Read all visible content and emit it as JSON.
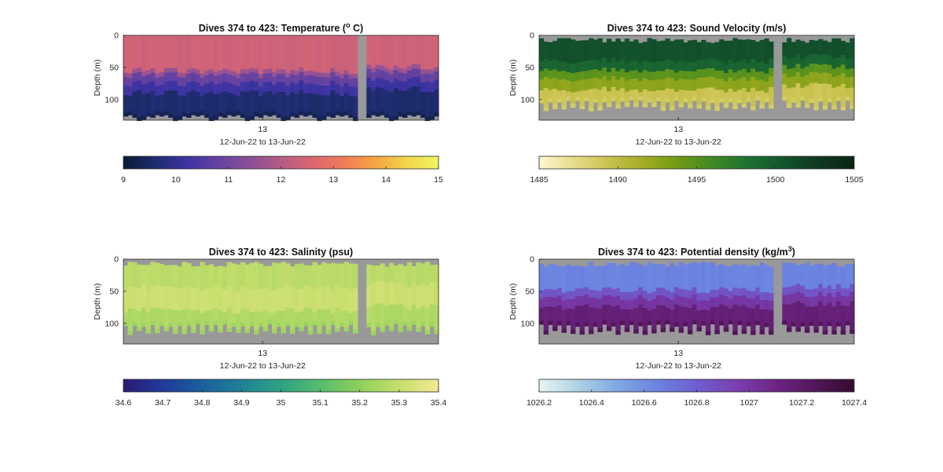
{
  "chart_data": [
    {
      "type": "heatmap",
      "title": "Dives 374 to 423: Temperature",
      "title_unit": {
        "pre": "(",
        "sup": "o",
        "post": " C)"
      },
      "ylabel": "Depth (m)",
      "xlabel": "12-Jun-22 to 13-Jun-22",
      "x_tick_labels": [
        "13"
      ],
      "y_ticks": [
        0,
        50,
        100
      ],
      "ylim": [
        0,
        132
      ],
      "y_reversed": true,
      "background_color": "#999999",
      "colorbar": {
        "min": 9,
        "max": 15,
        "ticks": [
          9,
          10,
          11,
          12,
          13,
          14,
          15
        ],
        "tick_labels": [
          "9",
          "10",
          "11",
          "12",
          "13",
          "14",
          "15"
        ],
        "colormap": [
          "#0b1a33",
          "#1e2c6e",
          "#3d33a3",
          "#6542a1",
          "#8a4f97",
          "#b45a86",
          "#db6772",
          "#f07c58",
          "#f6a542",
          "#f3d64a",
          "#eef760"
        ]
      },
      "profile": {
        "n_columns": 70,
        "gap_columns": [
          52,
          53
        ],
        "top_depth": [
          0,
          0
        ],
        "bottom_depth": [
          126,
          124,
          128,
          133,
          131,
          126,
          128,
          124
        ],
        "layers": [
          {
            "from": 0,
            "to": 55,
            "value": 12.4
          },
          {
            "from": 55,
            "to": 62,
            "value": 11.6
          },
          {
            "from": 62,
            "to": 75,
            "value": 10.8
          },
          {
            "from": 75,
            "to": 90,
            "value": 10.2
          },
          {
            "from": 90,
            "to": 132,
            "value": 9.6
          }
        ],
        "bottom_value": 9.3
      }
    },
    {
      "type": "heatmap",
      "title": "Dives 374 to 423: Sound Velocity (m/s)",
      "ylabel": "Depth (m)",
      "xlabel": "12-Jun-22 to 13-Jun-22",
      "x_tick_labels": [
        "13"
      ],
      "y_ticks": [
        0,
        50,
        100
      ],
      "ylim": [
        0,
        132
      ],
      "y_reversed": true,
      "background_color": "#999999",
      "colorbar": {
        "min": 1485,
        "max": 1505,
        "ticks": [
          1485,
          1490,
          1495,
          1500,
          1505
        ],
        "tick_labels": [
          "1485",
          "1490",
          "1495",
          "1500",
          "1505"
        ],
        "colormap": [
          "#fdf8d1",
          "#e7db8a",
          "#c9c24e",
          "#a3ac22",
          "#6f9a16",
          "#3d8825",
          "#1d7034",
          "#13532c",
          "#0e3820",
          "#0b2416"
        ]
      },
      "profile": {
        "n_columns": 70,
        "gap_columns": [
          52,
          53
        ],
        "top_depth": [
          4,
          12
        ],
        "bottom_depth": [
          95,
          118
        ],
        "layers": [
          {
            "from": 0,
            "to": 40,
            "value": 1500.8
          },
          {
            "from": 40,
            "to": 55,
            "value": 1499.2
          },
          {
            "from": 55,
            "to": 68,
            "value": 1494.8
          },
          {
            "from": 68,
            "to": 85,
            "value": 1492.6
          },
          {
            "from": 85,
            "to": 132,
            "value": 1489.3
          }
        ],
        "bottom_value": 1488.6
      }
    },
    {
      "type": "heatmap",
      "title": "Dives 374 to 423: Salinity (psu)",
      "ylabel": "Depth (m)",
      "xlabel": "12-Jun-22 to 13-Jun-22",
      "x_tick_labels": [
        "13"
      ],
      "y_ticks": [
        0,
        50,
        100
      ],
      "ylim": [
        0,
        132
      ],
      "y_reversed": true,
      "background_color": "#999999",
      "colorbar": {
        "min": 34.6,
        "max": 35.4,
        "ticks": [
          34.6,
          34.7,
          34.8,
          34.9,
          35,
          35.1,
          35.2,
          35.3,
          35.4
        ],
        "tick_labels": [
          "34.6",
          "34.7",
          "34.8",
          "34.9",
          "35",
          "35.1",
          "35.2",
          "35.3",
          "35.4"
        ],
        "colormap": [
          "#2b1a73",
          "#213a9c",
          "#1a5f9d",
          "#1f8196",
          "#2ea184",
          "#56bd6d",
          "#8ed05c",
          "#c7de6c",
          "#f2ea97"
        ]
      },
      "profile": {
        "n_columns": 70,
        "gap_columns": [
          52,
          53
        ],
        "top_depth": [
          4,
          12
        ],
        "bottom_depth": [
          95,
          118
        ],
        "layers": [
          {
            "from": 0,
            "to": 45,
            "value": 35.28
          },
          {
            "from": 45,
            "to": 80,
            "value": 35.31
          },
          {
            "from": 80,
            "to": 132,
            "value": 35.26
          }
        ],
        "bottom_value": 35.23
      }
    },
    {
      "type": "heatmap",
      "title": "Dives 374 to 423: Potential density",
      "title_unit": {
        "pre": "(kg/m",
        "sup": "3",
        "post": ")"
      },
      "ylabel": "Depth (m)",
      "xlabel": "12-Jun-22 to 13-Jun-22",
      "x_tick_labels": [
        "13"
      ],
      "y_ticks": [
        0,
        50,
        100
      ],
      "ylim": [
        0,
        132
      ],
      "y_reversed": true,
      "background_color": "#999999",
      "colorbar": {
        "min": 1026.2,
        "max": 1027.4,
        "ticks": [
          1026.2,
          1026.4,
          1026.6,
          1026.8,
          1027,
          1027.2,
          1027.4
        ],
        "tick_labels": [
          "1026.2",
          "1026.4",
          "1026.6",
          "1026.8",
          "1027",
          "1027.2",
          "1027.4"
        ],
        "colormap": [
          "#e9f4f3",
          "#acd2e4",
          "#7fa8e2",
          "#6b83e0",
          "#6e5fd0",
          "#7a3fb0",
          "#6e2585",
          "#521659",
          "#330d31"
        ]
      },
      "profile": {
        "n_columns": 70,
        "gap_columns": [
          52,
          53
        ],
        "top_depth": [
          4,
          12
        ],
        "bottom_depth": [
          95,
          118
        ],
        "layers": [
          {
            "from": 0,
            "to": 48,
            "value": 1026.65
          },
          {
            "from": 48,
            "to": 60,
            "value": 1026.85
          },
          {
            "from": 60,
            "to": 75,
            "value": 1027.0
          },
          {
            "from": 75,
            "to": 132,
            "value": 1027.15
          }
        ],
        "bottom_value": 1027.25
      }
    }
  ]
}
